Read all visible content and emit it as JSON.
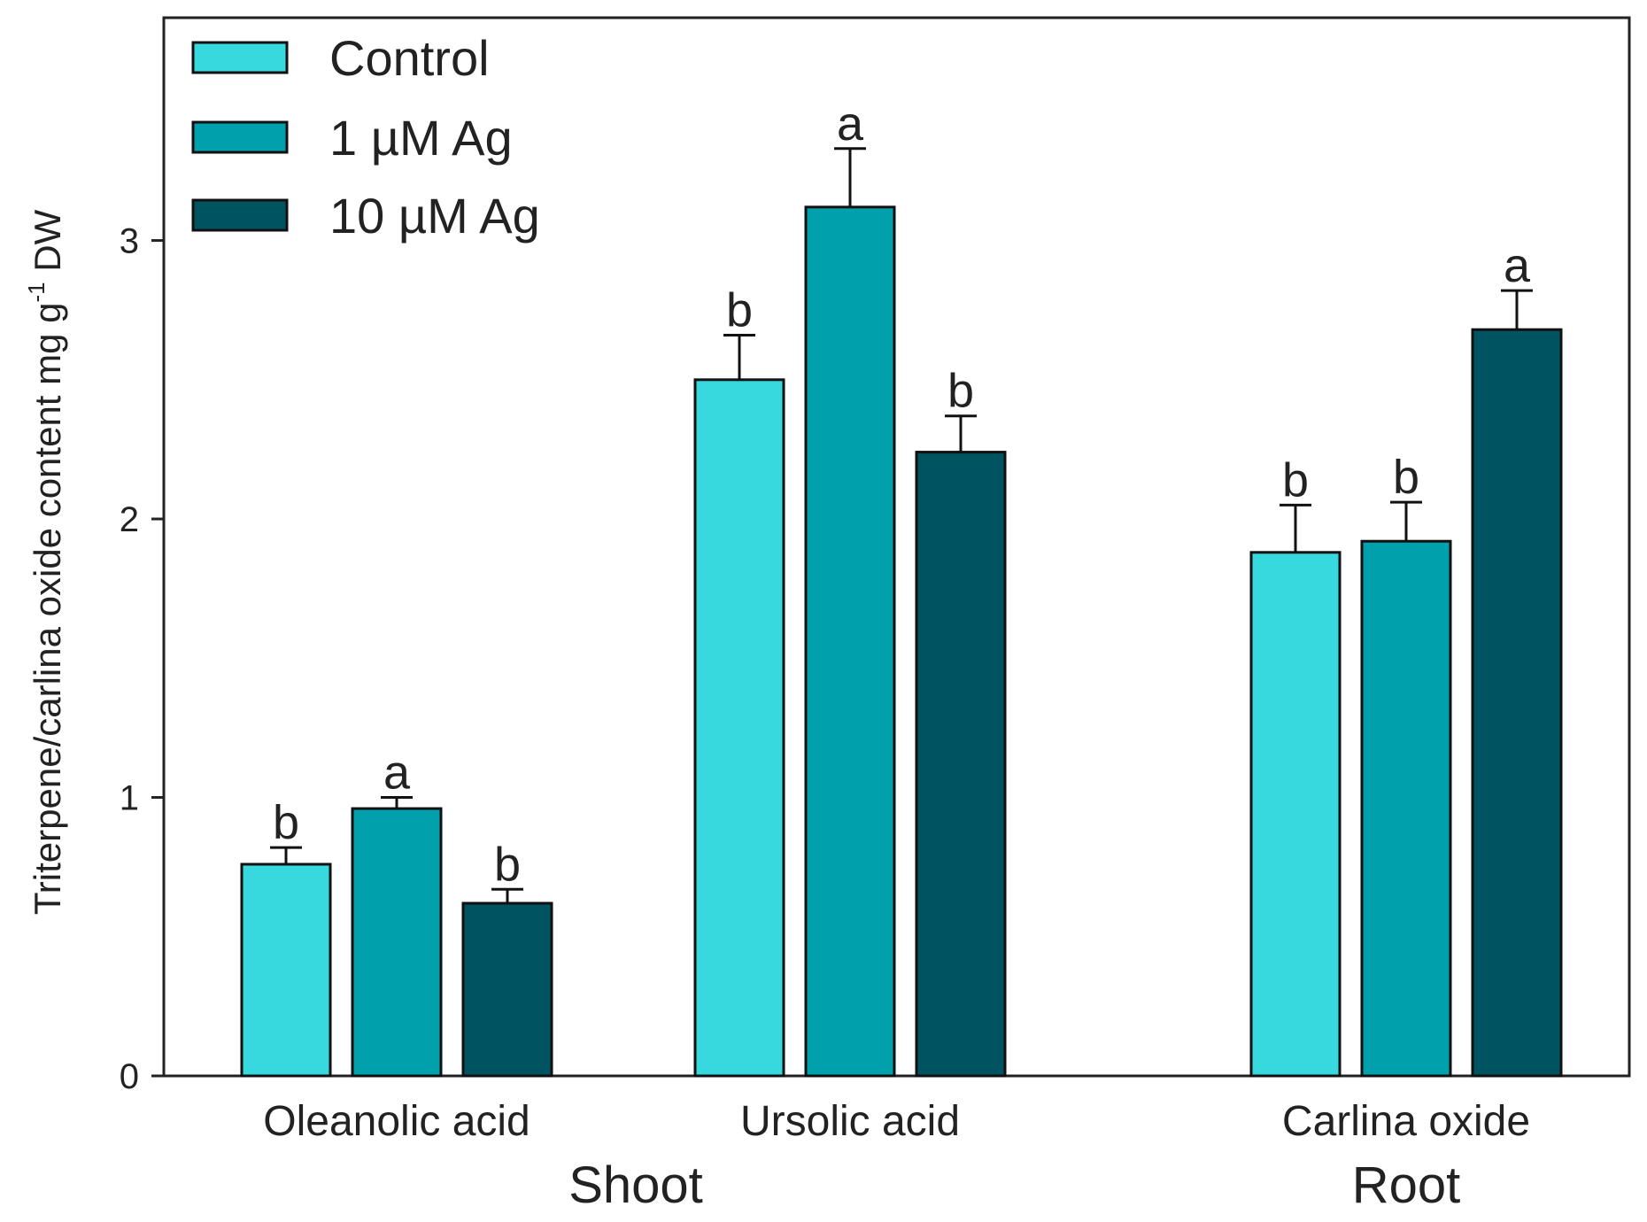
{
  "chart_data": {
    "type": "bar",
    "title": "",
    "xlabel": "",
    "ylabel": {
      "main": "Triterpene/carlina oxide content mg g",
      "superscript": "-1",
      "suffix": " DW"
    },
    "ylim": [
      0,
      3.8
    ],
    "yticks": [
      {
        "value": 0,
        "label": "0"
      },
      {
        "value": 1,
        "label": "1"
      },
      {
        "value": 2,
        "label": "2"
      },
      {
        "value": 3,
        "label": "3"
      }
    ],
    "grid": false,
    "legend_position": "top-left",
    "categories": [
      "Oleanolic acid",
      "Ursolic acid",
      "Carlina oxide"
    ],
    "groups": [
      {
        "label": "Shoot",
        "categories": [
          "Oleanolic acid",
          "Ursolic acid"
        ]
      },
      {
        "label": "Root",
        "categories": [
          "Carlina oxide"
        ]
      }
    ],
    "series": [
      {
        "name": "Control",
        "color": "#37d8de",
        "values": [
          0.76,
          2.5,
          1.88
        ],
        "errors": [
          0.06,
          0.16,
          0.17
        ],
        "letters": [
          "b",
          "b",
          "b"
        ]
      },
      {
        "name": "1 µM Ag",
        "color": "#00a1ad",
        "values": [
          0.96,
          3.12,
          1.92
        ],
        "errors": [
          0.04,
          0.21,
          0.14
        ],
        "letters": [
          "a",
          "a",
          "b"
        ]
      },
      {
        "name": "10 µM Ag",
        "color": "#005360",
        "values": [
          0.62,
          2.24,
          2.68
        ],
        "errors": [
          0.05,
          0.13,
          0.14
        ],
        "letters": [
          "b",
          "b",
          "a"
        ]
      }
    ]
  }
}
